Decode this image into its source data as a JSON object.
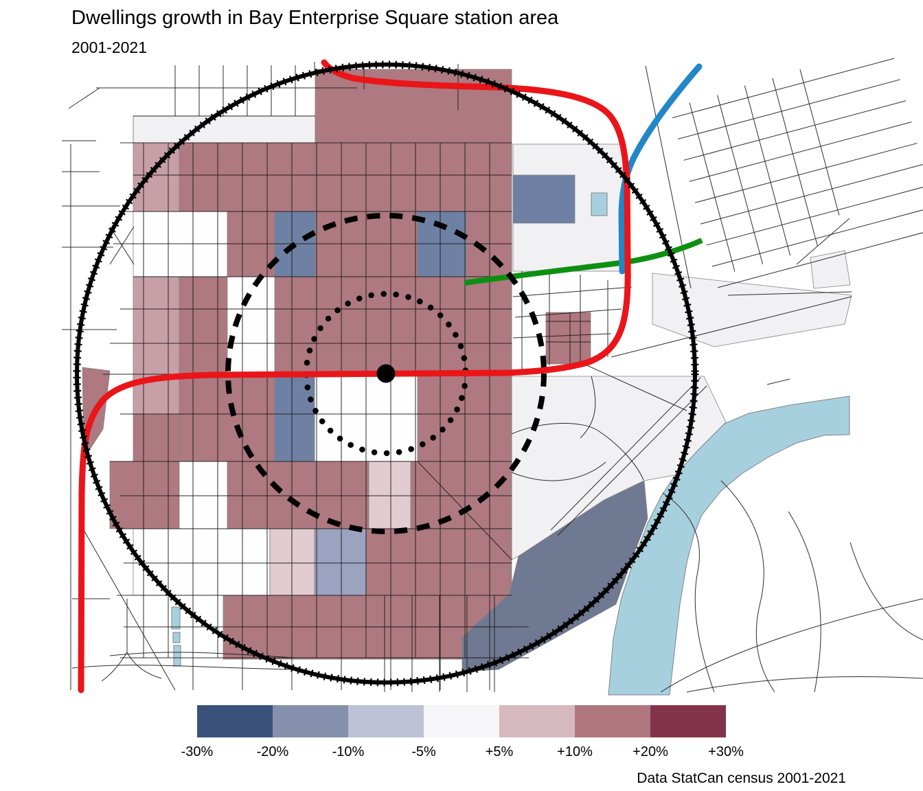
{
  "title": "Dwellings growth in Bay Enterprise Square station area",
  "subtitle": "2001-2021",
  "attribution": "Data StatCan census 2001-2021",
  "legend": {
    "labels": [
      "-30%",
      "-20%",
      "-10%",
      "-5%",
      "+5%",
      "+10%",
      "+20%",
      "+30%"
    ],
    "swatches": [
      "#3A527B",
      "#8490AC",
      "#BDC2D6",
      "#F6F5F7",
      "#D6B9BF",
      "#B0777F",
      "#84344A"
    ]
  },
  "palette": {
    "rose": "#AE7980",
    "rose_light": "#C79FA6",
    "pink_pale": "#E2CBD1",
    "tract_blue": "#6E81A4",
    "tract_lavender": "#9CA3C0",
    "tract_slate": "#6F7992",
    "tract_gray": "#F1F0F2",
    "water": "#A7D0DF",
    "line_red": "#EA1519",
    "line_blue": "#2187C6",
    "line_green": "#0D9012",
    "street": "#1A1A1A",
    "border": "#828282"
  }
}
